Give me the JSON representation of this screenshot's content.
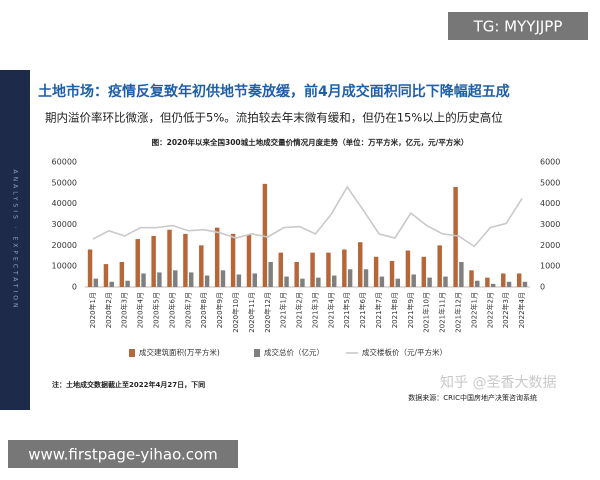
{
  "watermark_top": "TG: MYYJJPP",
  "watermark_bottom": "www.firstpage-yihao.com",
  "watermark_zhihu": "知乎 @圣香大数据",
  "side_text": "ANALYSIS · EXPECTATION",
  "header": "土地市场：疫情反复致年初供地节奏放缓，前4月成交面积同比下降幅超五成",
  "subtitle": "期内溢价率环比微涨，但仍低于5%。流拍较去年末微有缓和，但仍在15%以上的历史高位",
  "note": "注：土地成交数据截止至2022年4月27日，下同",
  "source": "数据来源：CRIC中国房地产决策咨询系统",
  "chart_data": {
    "type": "bar-line",
    "title": "图：2020年以来全国300城土地成交量价情况月度走势（单位：万平方米，亿元，元/平方米）",
    "categories": [
      "2020年1月",
      "2020年2月",
      "2020年3月",
      "2020年4月",
      "2020年5月",
      "2020年6月",
      "2020年7月",
      "2020年8月",
      "2020年9月",
      "2020年10月",
      "2020年11月",
      "2020年12月",
      "2021年1月",
      "2021年2月",
      "2021年3月",
      "2021年4月",
      "2021年5月",
      "2021年6月",
      "2021年7月",
      "2021年8月",
      "2021年9月",
      "2021年10月",
      "2021年11月",
      "2021年12月",
      "2022年1月",
      "2022年2月",
      "2022年3月",
      "2022年4月"
    ],
    "series": [
      {
        "name": "成交建筑面积(万平方米)",
        "color": "#b5673a",
        "values": [
          18000,
          11000,
          12000,
          23000,
          24500,
          27500,
          25500,
          20000,
          28500,
          25500,
          25000,
          49500,
          16500,
          12000,
          16500,
          16500,
          18000,
          21500,
          14500,
          12500,
          17500,
          14500,
          20000,
          48000,
          8000,
          4500,
          6500,
          6500
        ]
      },
      {
        "name": "成交总价（亿元）",
        "color": "#7f7f7f",
        "values": [
          4000,
          2500,
          3000,
          6500,
          7000,
          8000,
          7000,
          5500,
          8000,
          6000,
          6500,
          12000,
          5000,
          4000,
          4500,
          5500,
          8500,
          8500,
          5000,
          4000,
          6000,
          4500,
          5000,
          12000,
          3000,
          1500,
          2500,
          2500
        ]
      },
      {
        "name": "成交楼板价（元/平方米）",
        "color": "#c9c9c9",
        "axis": "y2",
        "values": [
          2300,
          2700,
          2450,
          2850,
          2850,
          2950,
          2700,
          2750,
          2600,
          2350,
          2550,
          2400,
          2850,
          2900,
          2550,
          3500,
          4800,
          3700,
          2550,
          2350,
          3550,
          2950,
          2550,
          2450,
          1950,
          2850,
          3050,
          4250
        ]
      }
    ],
    "ylim": [
      0,
      60000
    ],
    "yticks": [
      0,
      10000,
      20000,
      30000,
      40000,
      50000,
      60000
    ],
    "y2lim": [
      0,
      6000
    ],
    "y2ticks": [
      0,
      1000,
      2000,
      3000,
      4000,
      5000,
      6000
    ]
  }
}
